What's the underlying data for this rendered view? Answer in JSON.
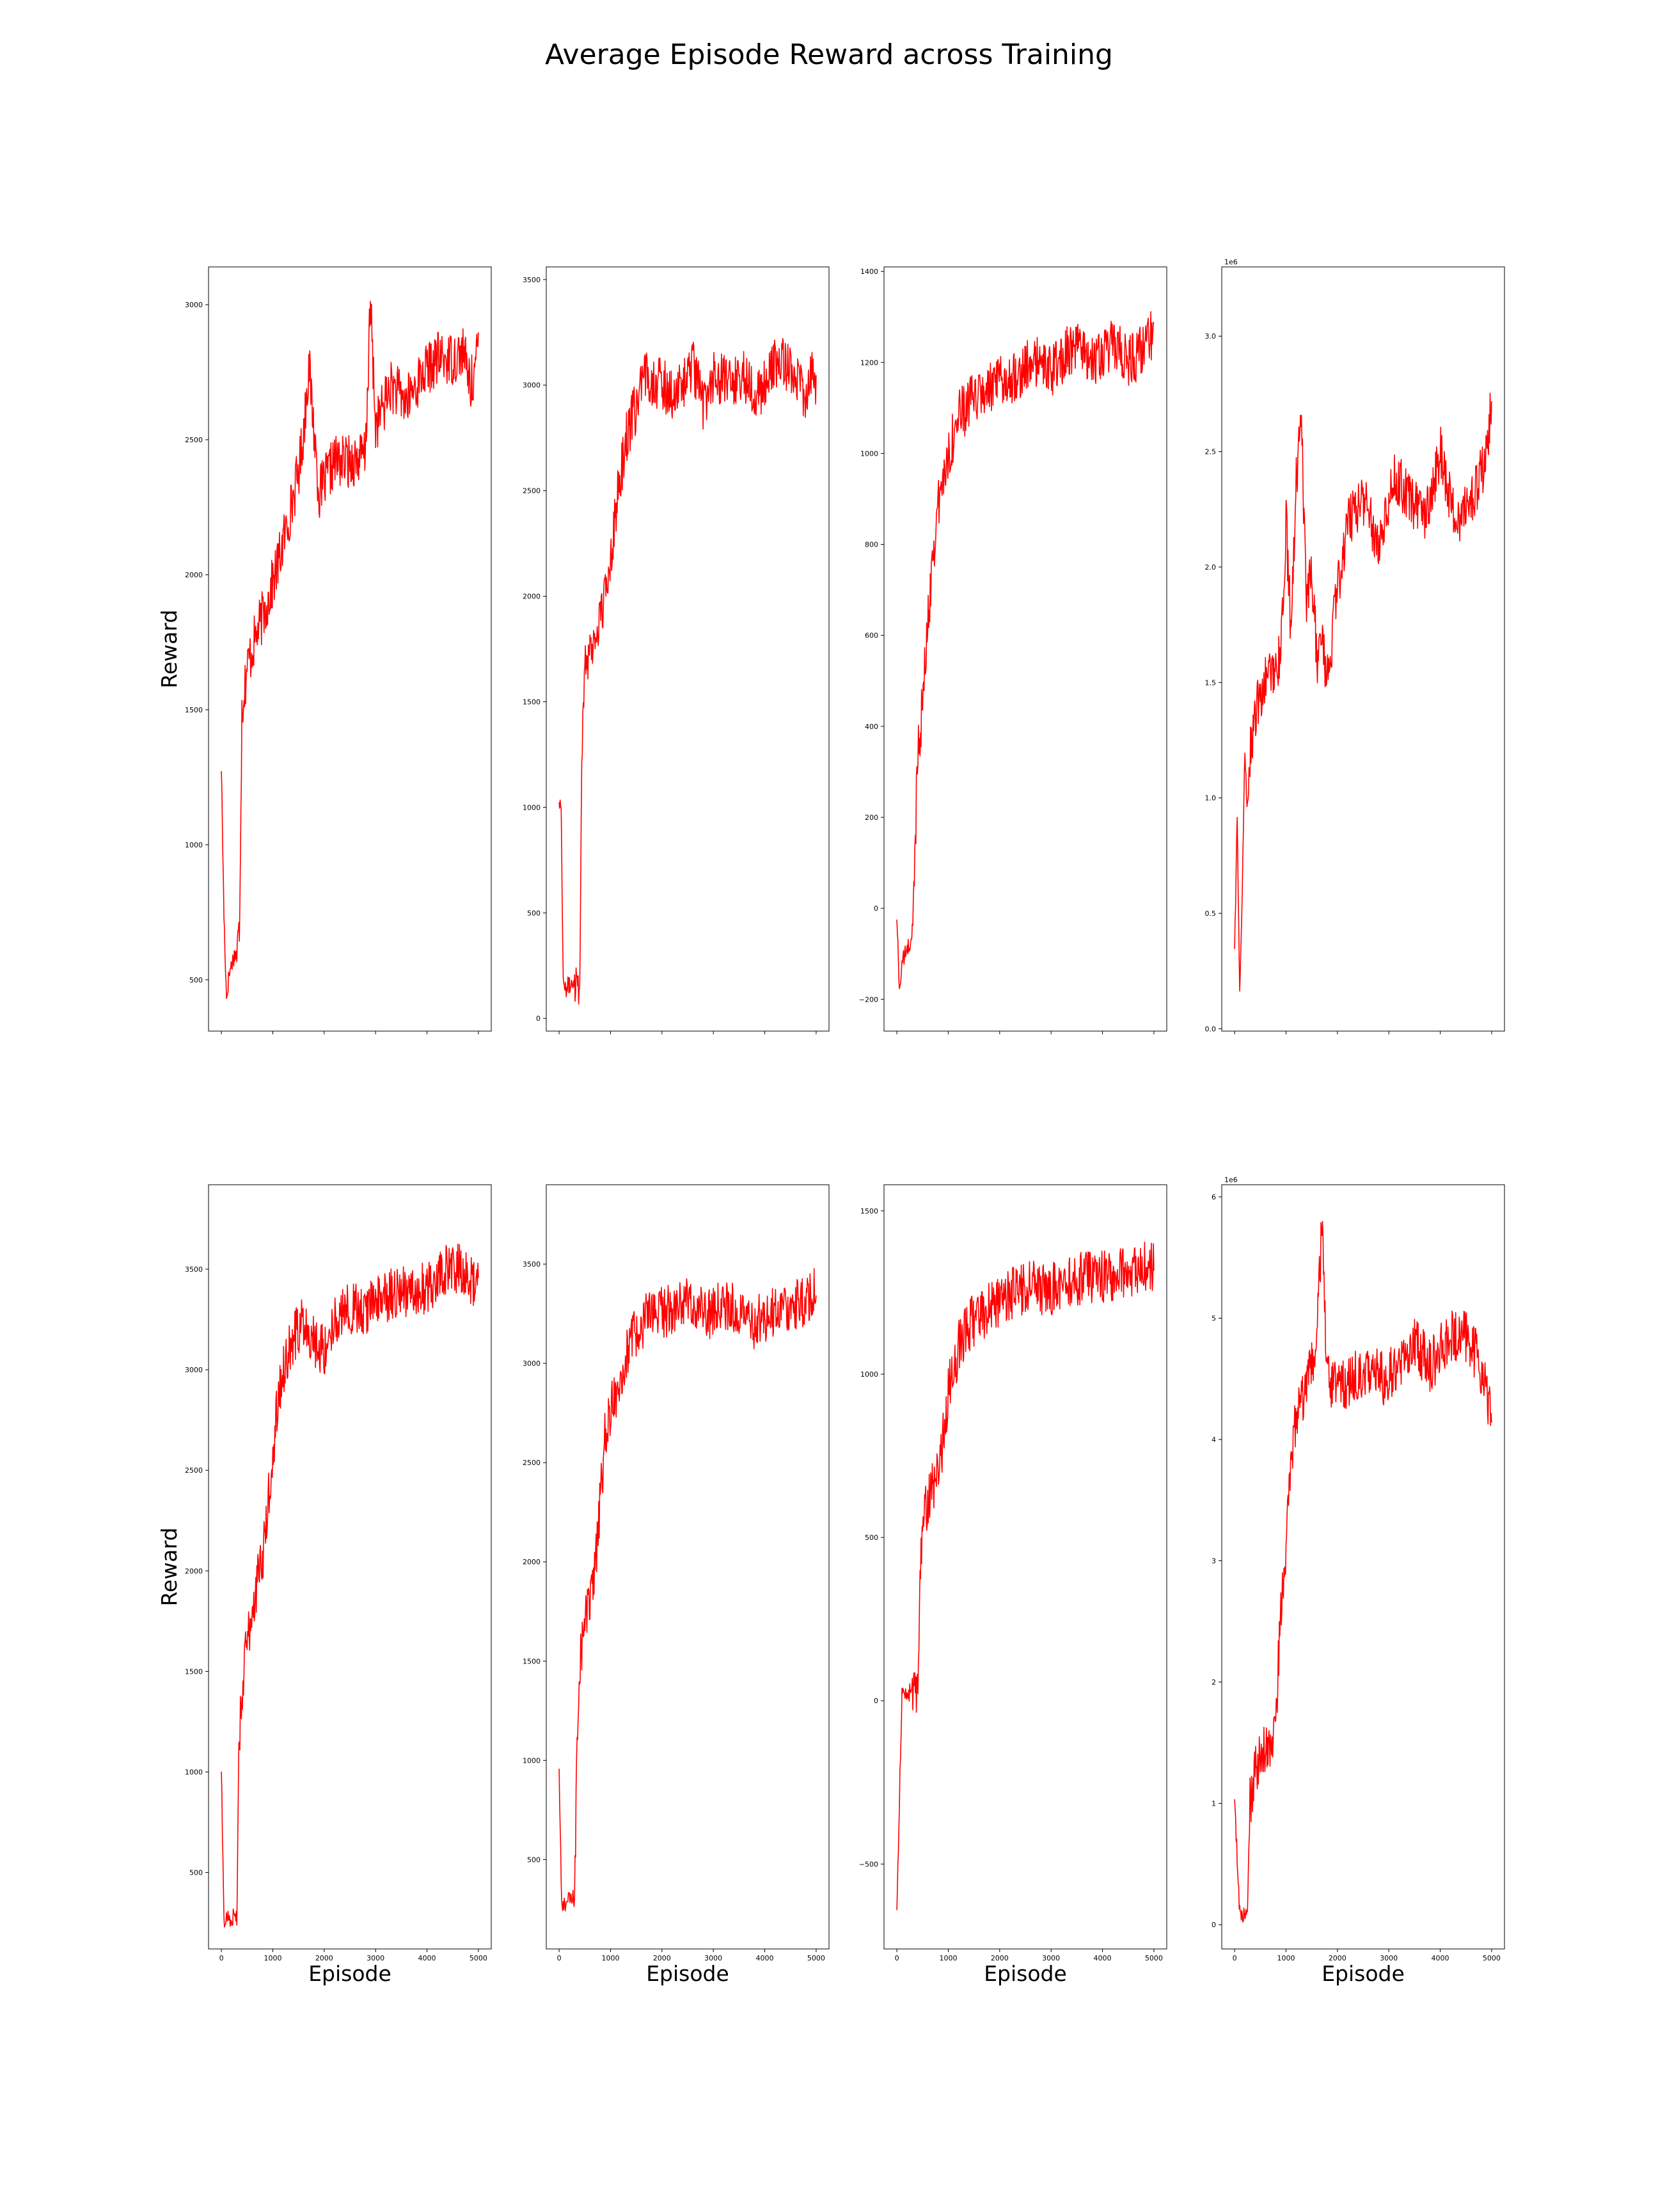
{
  "figure": {
    "suptitle": "Average Episode Reward across Training",
    "line_color": "#ff0000"
  },
  "chart_data": [
    {
      "type": "line",
      "title": "",
      "xlabel": "",
      "ylabel": "Reward",
      "xlim": [
        -250,
        5250
      ],
      "ylim": [
        310,
        3140
      ],
      "xticks": [
        0,
        1000,
        2000,
        3000,
        4000,
        5000
      ],
      "show_xtick_labels": false,
      "yticks": [
        500,
        1000,
        1500,
        2000,
        2500,
        3000
      ],
      "ytick_labels": [
        "500",
        "1000",
        "1500",
        "2000",
        "2500",
        "3000"
      ],
      "offset_text": "",
      "grid": false,
      "series": [
        {
          "x": [
            0,
            50,
            100,
            150,
            200,
            250,
            300,
            350,
            400,
            500,
            700,
            900,
            1100,
            1300,
            1500,
            1600,
            1700,
            1900,
            2200,
            2500,
            2800,
            2900,
            3000,
            3300,
            3600,
            3900,
            4200,
            4500,
            4700,
            4850,
            4950,
            5000
          ],
          "y": [
            1290,
            740,
            430,
            520,
            560,
            590,
            600,
            680,
            1500,
            1660,
            1790,
            1900,
            2040,
            2200,
            2380,
            2530,
            2780,
            2300,
            2420,
            2420,
            2440,
            3000,
            2550,
            2700,
            2640,
            2740,
            2800,
            2800,
            2830,
            2700,
            2780,
            2850
          ]
        }
      ]
    },
    {
      "type": "line",
      "title": "",
      "xlabel": "",
      "ylabel": "",
      "xlim": [
        -250,
        5250
      ],
      "ylim": [
        -60,
        3560
      ],
      "xticks": [
        0,
        1000,
        2000,
        3000,
        4000,
        5000
      ],
      "show_xtick_labels": false,
      "yticks": [
        0,
        500,
        1000,
        1500,
        2000,
        2500,
        3000,
        3500
      ],
      "ytick_labels": [
        "0",
        "500",
        "1000",
        "1500",
        "2000",
        "2500",
        "3000",
        "3500"
      ],
      "offset_text": "",
      "grid": false,
      "series": [
        {
          "x": [
            0,
            40,
            80,
            120,
            160,
            200,
            300,
            400,
            450,
            500,
            700,
            900,
            1100,
            1300,
            1500,
            1700,
            2000,
            2300,
            2600,
            2800,
            3000,
            3300,
            3600,
            3900,
            4200,
            4500,
            4800,
            4950,
            5000
          ],
          "y": [
            1040,
            1000,
            180,
            130,
            160,
            150,
            190,
            180,
            1350,
            1700,
            1800,
            2000,
            2400,
            2750,
            2900,
            3050,
            3000,
            2950,
            3100,
            2900,
            3050,
            3000,
            3050,
            2950,
            3100,
            3100,
            2950,
            3050,
            3000
          ]
        }
      ]
    },
    {
      "type": "line",
      "title": "",
      "xlabel": "",
      "ylabel": "",
      "xlim": [
        -250,
        5250
      ],
      "ylim": [
        -270,
        1410
      ],
      "xticks": [
        0,
        1000,
        2000,
        3000,
        4000,
        5000
      ],
      "show_xtick_labels": false,
      "yticks": [
        -200,
        0,
        200,
        400,
        600,
        800,
        1000,
        1200,
        1400
      ],
      "ytick_labels": [
        "−200",
        "0",
        "200",
        "400",
        "600",
        "800",
        "1000",
        "1200",
        "1400"
      ],
      "offset_text": "",
      "grid": false,
      "series": [
        {
          "x": [
            0,
            50,
            100,
            200,
            300,
            350,
            400,
            450,
            500,
            600,
            700,
            800,
            900,
            1000,
            1200,
            1500,
            1800,
            2100,
            2400,
            2700,
            3000,
            3300,
            3600,
            3900,
            4200,
            4500,
            4800,
            5000
          ],
          "y": [
            -20,
            -180,
            -120,
            -90,
            -70,
            100,
            350,
            390,
            450,
            620,
            780,
            880,
            940,
            1000,
            1080,
            1120,
            1140,
            1160,
            1180,
            1200,
            1180,
            1220,
            1230,
            1200,
            1240,
            1200,
            1230,
            1270
          ]
        }
      ]
    },
    {
      "type": "line",
      "title": "",
      "xlabel": "",
      "ylabel": "",
      "xlim": [
        -250,
        5250
      ],
      "ylim": [
        -0.01,
        3.3
      ],
      "xticks": [
        0,
        1000,
        2000,
        3000,
        4000,
        5000
      ],
      "show_xtick_labels": false,
      "yticks": [
        0.0,
        0.5,
        1.0,
        1.5,
        2.0,
        2.5,
        3.0
      ],
      "ytick_labels": [
        "0.0",
        "0.5",
        "1.0",
        "1.5",
        "2.0",
        "2.5",
        "3.0"
      ],
      "offset_text": "1e6",
      "grid": false,
      "series": [
        {
          "x": [
            0,
            50,
            100,
            150,
            200,
            250,
            300,
            400,
            500,
            700,
            900,
            1000,
            1100,
            1200,
            1300,
            1400,
            1500,
            1600,
            1700,
            1800,
            1900,
            2000,
            2200,
            2500,
            2800,
            3100,
            3400,
            3700,
            4000,
            4300,
            4600,
            4800,
            4900,
            5000
          ],
          "y": [
            0.35,
            0.9,
            0.15,
            0.6,
            1.2,
            0.95,
            1.2,
            1.35,
            1.45,
            1.55,
            1.6,
            2.2,
            1.7,
            2.4,
            2.6,
            1.8,
            2.0,
            1.6,
            1.7,
            1.5,
            1.7,
            1.9,
            2.2,
            2.3,
            2.1,
            2.4,
            2.3,
            2.2,
            2.5,
            2.2,
            2.3,
            2.4,
            2.5,
            2.7
          ]
        }
      ]
    },
    {
      "type": "line",
      "title": "",
      "xlabel": "Episode",
      "ylabel": "Reward",
      "xlim": [
        -250,
        5250
      ],
      "ylim": [
        120,
        3920
      ],
      "xticks": [
        0,
        1000,
        2000,
        3000,
        4000,
        5000
      ],
      "show_xtick_labels": true,
      "xtick_labels": [
        "0",
        "1000",
        "2000",
        "3000",
        "4000",
        "5000"
      ],
      "yticks": [
        500,
        1000,
        1500,
        2000,
        2500,
        3000,
        3500
      ],
      "ytick_labels": [
        "500",
        "1000",
        "1500",
        "2000",
        "2500",
        "3000",
        "3500"
      ],
      "offset_text": "",
      "grid": false,
      "series": [
        {
          "x": [
            0,
            50,
            100,
            200,
            300,
            350,
            400,
            500,
            600,
            700,
            800,
            900,
            1000,
            1100,
            1200,
            1400,
            1600,
            1800,
            2000,
            2200,
            2500,
            2800,
            3100,
            3400,
            3700,
            4000,
            4300,
            4600,
            4800,
            5000
          ],
          "y": [
            1000,
            250,
            280,
            270,
            300,
            1200,
            1400,
            1650,
            1800,
            1950,
            2050,
            2300,
            2600,
            2850,
            3000,
            3150,
            3250,
            3150,
            3100,
            3250,
            3300,
            3300,
            3350,
            3380,
            3400,
            3400,
            3500,
            3500,
            3450,
            3450
          ]
        }
      ]
    },
    {
      "type": "line",
      "title": "",
      "xlabel": "Episode",
      "ylabel": "",
      "xlim": [
        -250,
        5250
      ],
      "ylim": [
        50,
        3900
      ],
      "xticks": [
        0,
        1000,
        2000,
        3000,
        4000,
        5000
      ],
      "show_xtick_labels": true,
      "xtick_labels": [
        "0",
        "1000",
        "2000",
        "3000",
        "4000",
        "5000"
      ],
      "yticks": [
        500,
        1000,
        1500,
        2000,
        2500,
        3000,
        3500
      ],
      "ytick_labels": [
        "500",
        "1000",
        "1500",
        "2000",
        "2500",
        "3000",
        "3500"
      ],
      "offset_text": "",
      "grid": false,
      "series": [
        {
          "x": [
            0,
            50,
            100,
            200,
            300,
            350,
            400,
            500,
            600,
            700,
            800,
            900,
            1000,
            1100,
            1200,
            1400,
            1600,
            1800,
            2000,
            2300,
            2600,
            2900,
            3200,
            3500,
            3800,
            4100,
            4400,
            4700,
            5000
          ],
          "y": [
            950,
            250,
            280,
            300,
            300,
            1100,
            1500,
            1700,
            1800,
            1950,
            2300,
            2650,
            2750,
            2850,
            2950,
            3100,
            3200,
            3250,
            3250,
            3300,
            3300,
            3250,
            3300,
            3250,
            3200,
            3250,
            3300,
            3300,
            3350
          ]
        }
      ]
    },
    {
      "type": "line",
      "title": "",
      "xlabel": "Episode",
      "ylabel": "",
      "xlim": [
        -250,
        5250
      ],
      "ylim": [
        -760,
        1580
      ],
      "xticks": [
        0,
        1000,
        2000,
        3000,
        4000,
        5000
      ],
      "show_xtick_labels": true,
      "xtick_labels": [
        "0",
        "1000",
        "2000",
        "3000",
        "4000",
        "5000"
      ],
      "yticks": [
        -500,
        0,
        500,
        1000,
        1500
      ],
      "ytick_labels": [
        "−500",
        "0",
        "500",
        "1000",
        "1500"
      ],
      "offset_text": "",
      "grid": false,
      "series": [
        {
          "x": [
            0,
            50,
            100,
            200,
            300,
            400,
            450,
            500,
            600,
            700,
            800,
            900,
            1000,
            1200,
            1400,
            1600,
            1800,
            2000,
            2300,
            2600,
            2900,
            3200,
            3500,
            3800,
            4100,
            4400,
            4700,
            5000
          ],
          "y": [
            -650,
            -300,
            20,
            20,
            30,
            40,
            350,
            550,
            600,
            650,
            700,
            800,
            950,
            1080,
            1150,
            1180,
            1200,
            1230,
            1250,
            1270,
            1260,
            1270,
            1290,
            1300,
            1300,
            1310,
            1320,
            1330
          ]
        }
      ]
    },
    {
      "type": "line",
      "title": "",
      "xlabel": "Episode",
      "ylabel": "",
      "xlim": [
        -250,
        5250
      ],
      "ylim": [
        -0.2,
        6.1
      ],
      "xticks": [
        0,
        1000,
        2000,
        3000,
        4000,
        5000
      ],
      "show_xtick_labels": true,
      "xtick_labels": [
        "0",
        "1000",
        "2000",
        "3000",
        "4000",
        "5000"
      ],
      "yticks": [
        0,
        1,
        2,
        3,
        4,
        5,
        6
      ],
      "ytick_labels": [
        "0",
        "1",
        "2",
        "3",
        "4",
        "5",
        "6"
      ],
      "offset_text": "1e6",
      "grid": false,
      "series": [
        {
          "x": [
            0,
            50,
            100,
            150,
            250,
            300,
            400,
            500,
            600,
            700,
            800,
            900,
            1000,
            1100,
            1200,
            1400,
            1600,
            1700,
            1800,
            2000,
            2300,
            2600,
            2900,
            3200,
            3500,
            3800,
            4100,
            4400,
            4700,
            4900,
            5000
          ],
          "y": [
            1.0,
            0.55,
            0.1,
            0.08,
            0.08,
            1.0,
            1.25,
            1.35,
            1.45,
            1.5,
            1.65,
            2.6,
            3.1,
            3.8,
            4.2,
            4.4,
            4.8,
            5.8,
            4.5,
            4.4,
            4.5,
            4.6,
            4.5,
            4.6,
            4.8,
            4.6,
            4.8,
            4.9,
            4.7,
            4.4,
            4.2
          ]
        }
      ]
    }
  ]
}
